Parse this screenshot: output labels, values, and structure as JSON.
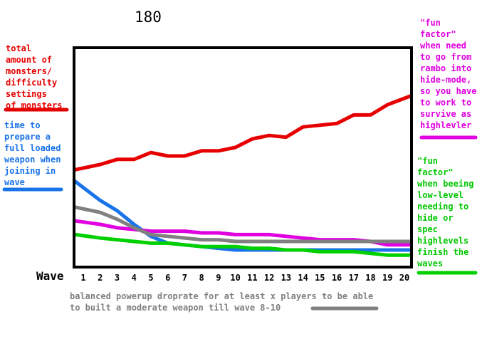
{
  "top_number": "180",
  "notes": {
    "red": "total\namount of\nmonsters/\ndifficulty\nsettings\nof monsters",
    "blue": "time to\nprepare a\nfull loaded\nweapon when\njoining in\nwave",
    "magenta": "\"fun\nfactor\"\nwhen need\nto go from\nrambo into\nhide-mode,\nso you have\nto work to\nsurvive as\nhighlevler",
    "green": "\"fun\nfactor\"\nwhen beeing\nlow-level\nneeding to\nhide or\nspec\nhighlevels\nfinish the\nwaves"
  },
  "footer": "balanced powerup droprate for at least x players to be able\nto built a moderate weapon till wave 8-10",
  "colors": {
    "red": "#e60000",
    "blue": "#1a73e8",
    "magenta": "#e000e0",
    "green": "#00d000",
    "gray": "#808080"
  },
  "chart_data": {
    "type": "line",
    "title": "",
    "xlabel": "Wave",
    "ylabel": "",
    "x": [
      1,
      2,
      3,
      4,
      5,
      6,
      7,
      8,
      9,
      10,
      11,
      12,
      13,
      14,
      15,
      16,
      17,
      18,
      19,
      20
    ],
    "xlim": [
      0.5,
      20.5
    ],
    "ylim": [
      0,
      100
    ],
    "grid": false,
    "legend": "side annotations",
    "series": [
      {
        "color": "red",
        "values": [
          47,
          50,
          53,
          53,
          57,
          55,
          55,
          58,
          58,
          60,
          65,
          67,
          66,
          72,
          73,
          74,
          79,
          79,
          85,
          90
        ]
      },
      {
        "color": "blue",
        "values": [
          40,
          29,
          23,
          15,
          8,
          4,
          3,
          2,
          1,
          0,
          0,
          0,
          0,
          0,
          0,
          0,
          0,
          0,
          0,
          0
        ]
      },
      {
        "color": "magenta",
        "values": [
          17,
          15,
          13,
          12,
          11,
          11,
          11,
          10,
          10,
          9,
          9,
          9,
          8,
          7,
          6,
          6,
          6,
          5,
          3,
          3
        ]
      },
      {
        "color": "green",
        "values": [
          9,
          7,
          6,
          5,
          4,
          4,
          3,
          2,
          2,
          2,
          1,
          1,
          0,
          0,
          -1,
          -1,
          -1,
          -2,
          -3,
          -3
        ]
      },
      {
        "color": "gray",
        "values": [
          25,
          22,
          18,
          13,
          9,
          8,
          7,
          6,
          6,
          5,
          5,
          5,
          5,
          5,
          5,
          5,
          5,
          5,
          5,
          5
        ]
      }
    ]
  }
}
